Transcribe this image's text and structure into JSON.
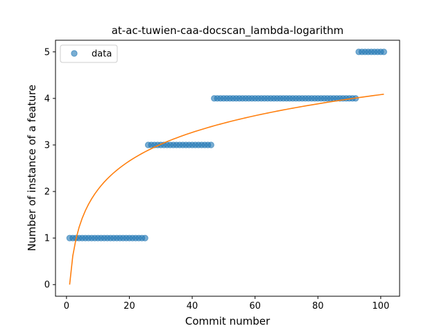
{
  "chart_data": {
    "type": "scatter",
    "title": "at-ac-tuwien-caa-docscan_lambda-logarithm",
    "xlabel": "Commit number",
    "ylabel": "Number of instance of a feature",
    "xlim": [
      -3.5,
      106
    ],
    "ylim": [
      -0.25,
      5.25
    ],
    "xticks": [
      0,
      20,
      40,
      60,
      80,
      100
    ],
    "yticks": [
      0,
      1,
      2,
      3,
      4,
      5
    ],
    "grid": false,
    "legend_position": "top-left",
    "series": [
      {
        "name": "data",
        "kind": "scatter",
        "color": "#1f77b4",
        "segments": [
          {
            "x_from": 1,
            "x_to": 25,
            "y": 1
          },
          {
            "x_from": 26,
            "x_to": 46,
            "y": 3
          },
          {
            "x_from": 47,
            "x_to": 92,
            "y": 4
          },
          {
            "x_from": 93,
            "x_to": 101,
            "y": 5
          }
        ]
      },
      {
        "kind": "line",
        "color": "#ff7f0e",
        "model": "y = 0.8863 * ln(x)",
        "x_range": [
          1,
          101
        ],
        "points": [
          {
            "x": 1,
            "y": 0.0
          },
          {
            "x": 2,
            "y": 0.61
          },
          {
            "x": 3,
            "y": 0.97
          },
          {
            "x": 5,
            "y": 1.43
          },
          {
            "x": 10,
            "y": 2.04
          },
          {
            "x": 20,
            "y": 2.66
          },
          {
            "x": 30,
            "y": 3.01
          },
          {
            "x": 40,
            "y": 3.27
          },
          {
            "x": 50,
            "y": 3.47
          },
          {
            "x": 60,
            "y": 3.63
          },
          {
            "x": 70,
            "y": 3.77
          },
          {
            "x": 80,
            "y": 3.88
          },
          {
            "x": 90,
            "y": 3.99
          },
          {
            "x": 101,
            "y": 4.09
          }
        ]
      }
    ],
    "legend": [
      {
        "label": "data",
        "marker": "circle",
        "color": "#1f77b4"
      }
    ]
  }
}
